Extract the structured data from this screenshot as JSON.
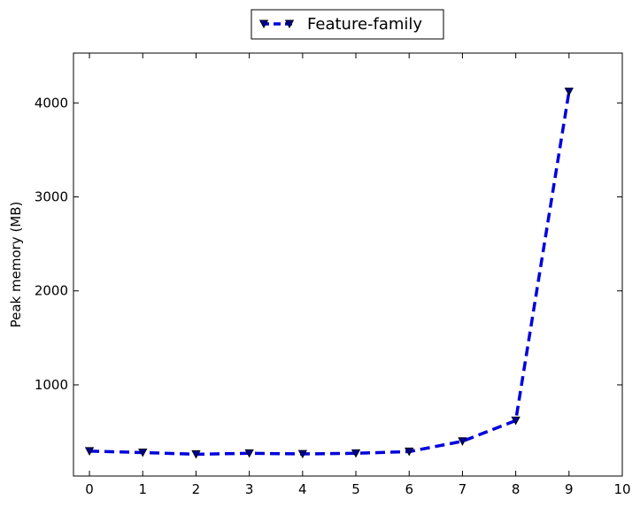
{
  "chart_data": {
    "type": "line",
    "title": "",
    "xlabel": "",
    "ylabel": "Peak memory (MB)",
    "xlim": [
      -0.3,
      10
    ],
    "ylim": [
      30,
      4530
    ],
    "xticks": [
      0,
      1,
      2,
      3,
      4,
      5,
      6,
      7,
      8,
      9,
      10
    ],
    "yticks": [
      1000,
      2000,
      3000,
      4000
    ],
    "grid": false,
    "legend_position": "top-center",
    "x": [
      0,
      1,
      2,
      3,
      4,
      5,
      6,
      7,
      8,
      9
    ],
    "series": [
      {
        "name": "Feature-family",
        "values": [
          295,
          280,
          262,
          272,
          265,
          272,
          290,
          400,
          620,
          4120
        ],
        "color": "#0000dd",
        "line_style": "dashed",
        "marker": "triangle-down"
      }
    ]
  }
}
